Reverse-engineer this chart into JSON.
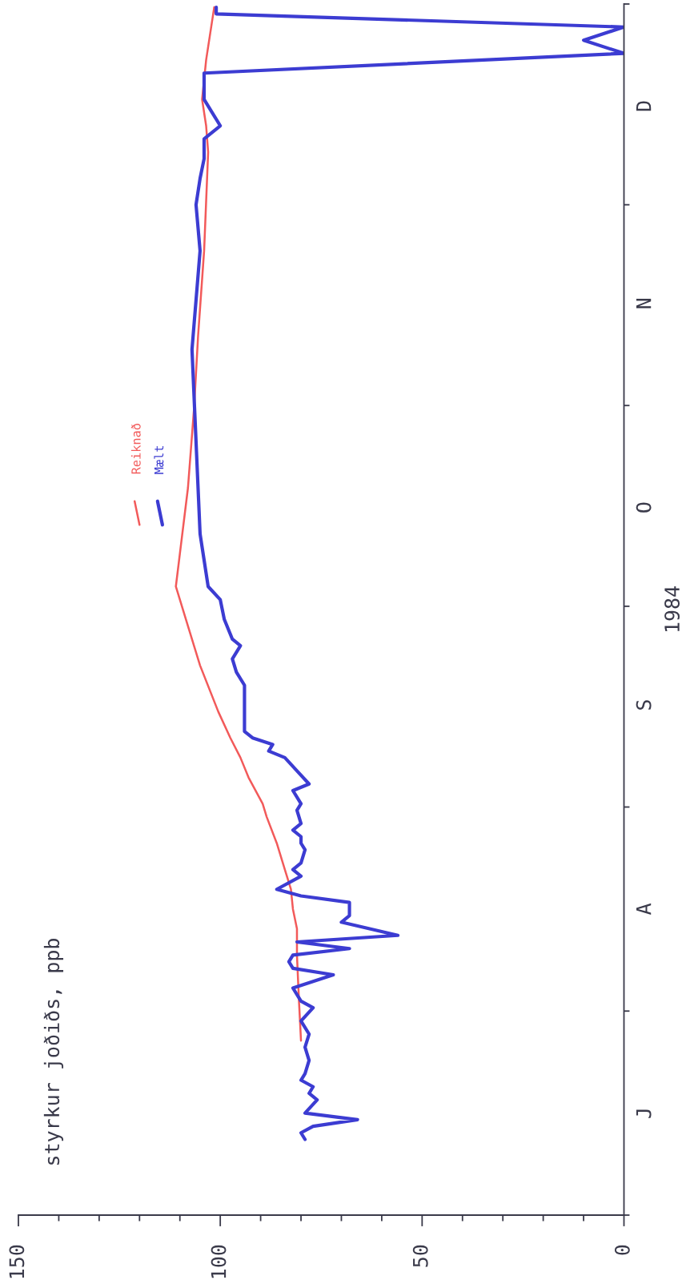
{
  "chart_data": {
    "type": "line",
    "orientation": "horizontal",
    "title": "styrkur joðiðs, ppb",
    "ylabel": "1984",
    "xlim": [
      150,
      0
    ],
    "xticks": [
      0,
      {
        "value": 10,
        "label": null
      },
      {
        "value": 20,
        "label": null
      },
      {
        "value": 30,
        "label": null
      },
      {
        "value": 40,
        "label": null
      },
      50,
      {
        "value": 60,
        "label": null
      },
      {
        "value": 70,
        "label": null
      },
      {
        "value": 80,
        "label": null
      },
      {
        "value": 90,
        "label": null
      },
      100,
      {
        "value": 110,
        "label": null
      },
      {
        "value": 120,
        "label": null
      },
      {
        "value": 130,
        "label": null
      },
      {
        "value": 140,
        "label": null
      },
      150
    ],
    "categories": [
      null,
      null,
      null,
      null,
      null,
      null,
      null,
      null,
      null,
      null,
      null,
      null,
      null,
      null,
      null,
      "D",
      null,
      null,
      null,
      null,
      null,
      null,
      null,
      null,
      null,
      null,
      null,
      null,
      null,
      null,
      null,
      null,
      null,
      null,
      null,
      null,
      null,
      null,
      null,
      null,
      null,
      null,
      null,
      null,
      null,
      "N",
      null,
      null,
      null,
      null,
      null,
      null,
      null,
      null,
      null,
      null,
      null,
      null,
      null,
      null,
      null,
      null,
      null,
      null,
      null,
      null,
      null,
      null,
      null,
      null,
      null,
      null,
      null,
      null,
      null,
      null,
      "O",
      null,
      null,
      null,
      null,
      null,
      null,
      null,
      null,
      null,
      null,
      null,
      null,
      null,
      null,
      null,
      null,
      null,
      null,
      null,
      null,
      null,
      null,
      null,
      null,
      null,
      null,
      null,
      null,
      null,
      "S",
      null,
      null,
      null,
      null,
      null,
      null,
      null,
      null,
      null,
      null,
      null,
      null,
      null,
      null,
      null,
      null,
      null,
      null,
      null,
      null,
      null,
      null,
      null,
      null,
      null,
      null,
      null,
      null,
      null,
      null,
      "A",
      null,
      null,
      null,
      null,
      null,
      null,
      null,
      null,
      null,
      null,
      null,
      null,
      null,
      null,
      null,
      null,
      null,
      null,
      null,
      null,
      null,
      null,
      null,
      null,
      null,
      null,
      null,
      null,
      null,
      null,
      "J",
      null,
      null,
      null,
      null,
      null,
      null,
      null,
      null,
      null,
      null,
      null,
      null,
      null,
      null,
      null
    ],
    "legend": "left",
    "series": [
      {
        "name": "Reiknað",
        "color": "#f25a5a",
        "values": [
          101.5,
          null,
          null,
          null,
          null,
          null,
          null,
          null,
          103.5,
          null,
          null,
          104,
          null,
          null,
          104.5,
          null,
          null,
          null,
          103.5,
          null,
          null,
          null,
          103,
          null,
          null,
          null,
          null,
          null,
          null,
          null,
          null,
          null,
          null,
          null,
          null,
          null,
          null,
          104,
          null,
          null,
          null,
          null,
          null,
          null,
          null,
          null,
          null,
          null,
          null,
          null,
          105.5,
          null,
          null,
          null,
          null,
          null,
          null,
          null,
          null,
          null,
          null,
          106.5,
          null,
          null,
          null,
          null,
          null,
          null,
          null,
          null,
          null,
          null,
          null,
          108,
          null,
          null,
          null,
          null,
          null,
          null,
          null,
          null,
          null,
          110,
          null,
          null,
          null,
          null,
          111,
          null,
          null,
          null,
          null,
          null,
          108,
          null,
          null,
          null,
          null,
          null,
          105,
          null,
          null,
          null,
          null,
          null,
          null,
          100.5,
          null,
          null,
          null,
          97.5,
          null,
          null,
          95,
          null,
          null,
          93,
          null,
          null,
          null,
          89.5,
          null,
          88.5,
          null,
          null,
          null,
          86,
          null,
          null,
          null,
          84,
          null,
          null,
          82.5,
          null,
          null,
          82,
          null,
          null,
          81,
          null,
          null,
          null,
          81,
          null,
          null,
          null,
          null,
          null,
          null,
          80.5,
          null,
          null,
          null,
          null,
          null,
          80,
          null,
          null,
          null,
          null,
          null,
          null,
          null,
          null,
          null,
          null,
          null,
          null,
          null,
          null,
          null,
          null,
          null,
          null,
          null,
          null,
          null,
          null,
          null,
          null,
          null,
          null
        ]
      },
      {
        "name": "Mælt",
        "color": "#3c3cd2",
        "values": [
          101,
          101,
          null,
          0,
          null,
          10,
          null,
          0,
          null,
          null,
          104,
          null,
          null,
          null,
          104,
          null,
          102,
          null,
          100,
          null,
          104,
          null,
          null,
          104,
          null,
          null,
          105,
          null,
          null,
          null,
          106,
          null,
          null,
          null,
          null,
          null,
          null,
          105,
          null,
          null,
          null,
          null,
          null,
          null,
          null,
          null,
          null,
          null,
          null,
          null,
          null,
          null,
          107,
          null,
          null,
          null,
          null,
          null,
          null,
          null,
          null,
          null,
          null,
          null,
          null,
          null,
          null,
          null,
          null,
          null,
          null,
          null,
          null,
          null,
          null,
          null,
          null,
          null,
          null,
          null,
          105,
          null,
          null,
          null,
          104,
          null,
          null,
          null,
          103,
          null,
          100,
          null,
          null,
          99,
          null,
          null,
          97,
          95,
          null,
          97,
          null,
          96,
          null,
          94,
          null,
          null,
          94,
          null,
          94,
          null,
          94,
          92,
          87,
          88,
          84,
          null,
          81,
          null,
          78,
          82,
          null,
          80,
          81,
          null,
          80,
          82,
          80,
          80,
          79,
          null,
          80,
          82,
          80,
          null,
          86,
          80,
          68,
          null,
          68,
          70,
          null,
          56,
          81,
          68,
          82,
          83,
          82,
          72,
          null,
          82,
          null,
          80,
          77,
          null,
          80,
          null,
          78,
          null,
          79,
          null,
          78,
          null,
          79,
          80,
          77,
          78,
          76,
          null,
          79,
          66,
          77,
          80,
          79,
          null,
          null,
          null,
          null,
          null,
          null,
          null,
          null,
          null,
          null,
          null
        ]
      }
    ]
  }
}
